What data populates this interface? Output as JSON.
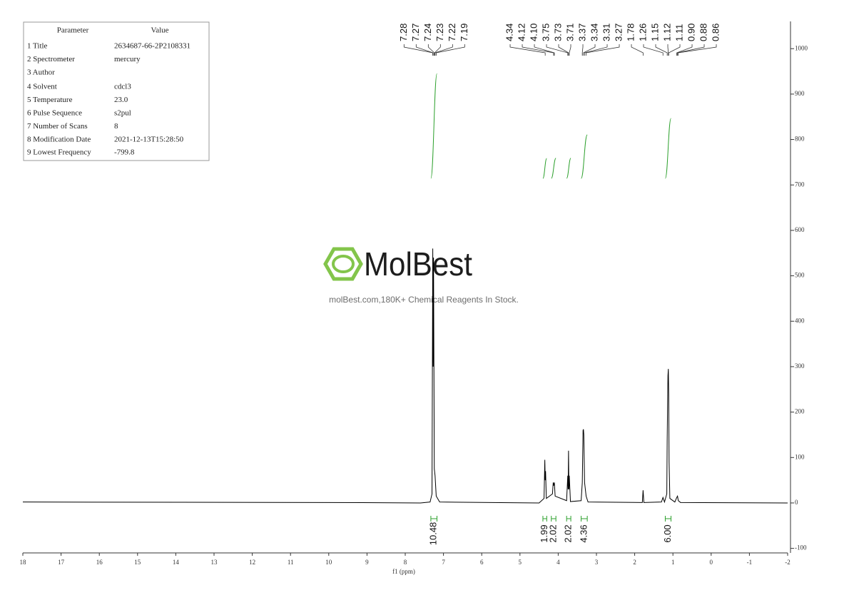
{
  "parameter_table": {
    "header": [
      "Parameter",
      "Value"
    ],
    "rows": [
      [
        "1 Title",
        "2634687-66-2P2108331"
      ],
      [
        "2 Spectrometer",
        "mercury"
      ],
      [
        "3 Author",
        null
      ],
      [
        "4 Solvent",
        "cdcl3"
      ],
      [
        "5 Temperature",
        "23.0"
      ],
      [
        "6 Pulse Sequence",
        "s2pul"
      ],
      [
        "7 Number of Scans",
        "8"
      ],
      [
        "8 Modification Date",
        "2021-12-13T15:28:50"
      ],
      [
        "9 Lowest Frequency",
        "-799.8"
      ]
    ]
  },
  "watermark": {
    "brand": "MolBest",
    "tagline": "molBest.com,180K+ Chemical Reagents In Stock."
  },
  "chart_data": {
    "type": "line",
    "x_label": "f1 (ppm)",
    "xlim": [
      18,
      -2
    ],
    "xticks": [
      18,
      17,
      16,
      15,
      14,
      13,
      12,
      11,
      10,
      9,
      8,
      7,
      6,
      5,
      4,
      3,
      2,
      1,
      0,
      -1,
      -2
    ],
    "ylim": [
      -110,
      1060
    ],
    "yticks": [
      -100,
      0,
      100,
      200,
      300,
      400,
      500,
      600,
      700,
      800,
      900,
      1000
    ],
    "x": [
      18,
      10,
      7.6,
      7.35,
      7.3,
      7.28,
      7.27,
      7.26,
      7.24,
      7.22,
      7.19,
      7.1,
      4.5,
      4.37,
      4.35,
      4.34,
      4.33,
      4.31,
      4.15,
      4.13,
      4.12,
      4.1,
      4.08,
      3.78,
      3.75,
      3.74,
      3.73,
      3.72,
      3.71,
      3.68,
      3.4,
      3.37,
      3.35,
      3.34,
      3.33,
      3.31,
      3.27,
      3.22,
      1.8,
      1.78,
      1.76,
      1.3,
      1.26,
      1.22,
      1.16,
      1.15,
      1.13,
      1.12,
      1.11,
      1.1,
      1.08,
      0.95,
      0.9,
      0.88,
      0.86,
      0.8,
      -2
    ],
    "series": [
      {
        "color": "#000000",
        "values": [
          2,
          1,
          0,
          2,
          20,
          560,
          300,
          540,
          75,
          60,
          15,
          2,
          0,
          10,
          95,
          50,
          70,
          10,
          20,
          45,
          38,
          45,
          15,
          5,
          60,
          30,
          115,
          30,
          60,
          3,
          5,
          45,
          160,
          162,
          150,
          45,
          15,
          2,
          1,
          28,
          1,
          2,
          12,
          2,
          20,
          140,
          280,
          295,
          240,
          90,
          10,
          2,
          12,
          15,
          5,
          1,
          0
        ]
      }
    ],
    "peak_labels": [
      7.28,
      7.27,
      7.24,
      7.23,
      7.22,
      7.19,
      4.34,
      4.12,
      {
        "value": 4.1,
        "label": "4.10"
      },
      3.75,
      3.73,
      3.71,
      3.37,
      3.34,
      3.31,
      3.27,
      1.78,
      1.26,
      1.15,
      1.12,
      1.11,
      {
        "value": 0.9,
        "label": "0.90"
      },
      0.88,
      0.86
    ],
    "integral_color": "#2ca02c",
    "integrals": [
      {
        "range": [
          7.33,
          7.17
        ],
        "value": 10.48
      },
      {
        "range": [
          4.4,
          4.3
        ],
        "value": 1.99
      },
      {
        "range": [
          4.18,
          4.06
        ],
        "value": 2.02
      },
      {
        "range": [
          3.78,
          3.67
        ],
        "value": 2.02
      },
      {
        "range": [
          3.4,
          3.24
        ],
        "value": 4.36
      },
      {
        "range": [
          1.2,
          1.05
        ],
        "value": 6,
        "label": "6.00"
      }
    ]
  }
}
